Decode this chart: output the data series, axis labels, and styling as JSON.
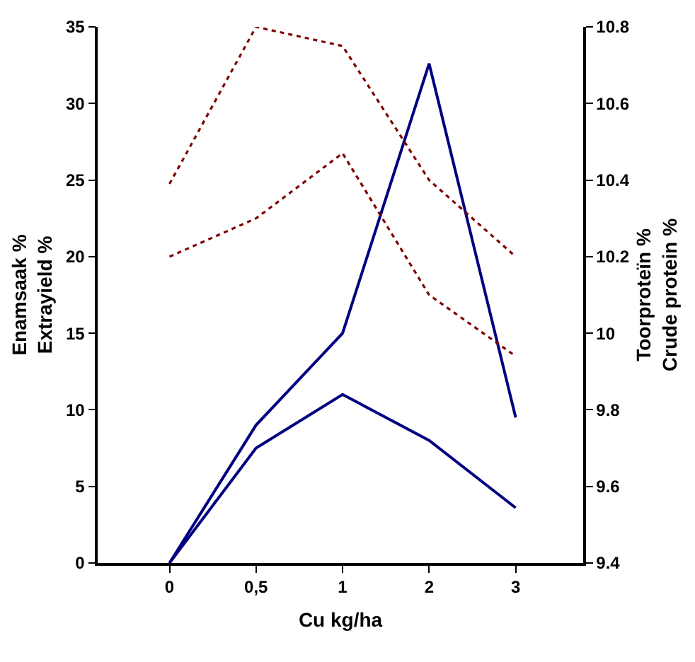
{
  "chart_data": {
    "type": "line",
    "xlabel": "Cu kg/ha",
    "ylabel": "Enamsaak %\nExtrayield %",
    "y2label": "Toorproteïn %\nCrude protein %",
    "categories": [
      "0",
      "0,5",
      "1",
      "2",
      "3"
    ],
    "series": [
      {
        "color": "#000080",
        "values": [
          0,
          9,
          15,
          32.6,
          9.5
        ],
        "line_style": "solid"
      },
      {
        "color": "#000080",
        "values": [
          0,
          7.5,
          11,
          8,
          3.6
        ],
        "line_style": "solid"
      },
      {
        "color": "#800000",
        "values": [
          10.39,
          10.8,
          10.75,
          10.4,
          10.2
        ],
        "axis": "y2",
        "line_style": "dotted"
      },
      {
        "color": "#800000",
        "values": [
          10.2,
          10.3,
          10.47,
          10.1,
          9.94
        ],
        "axis": "y2",
        "line_style": "dotted"
      }
    ],
    "ylim": [
      0,
      35
    ],
    "yticks": [
      0,
      5,
      10,
      15,
      20,
      25,
      30,
      35
    ],
    "y2lim": [
      9.4,
      10.8
    ],
    "y2ticks": [
      9.4,
      9.6,
      9.8,
      10,
      10.2,
      10.4,
      10.6,
      10.8
    ],
    "marker": "none"
  }
}
